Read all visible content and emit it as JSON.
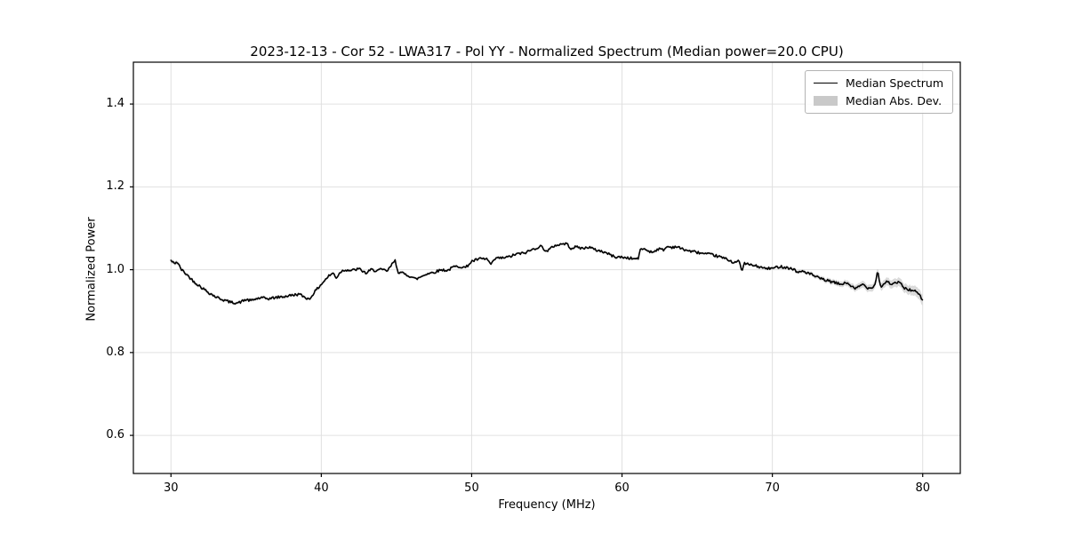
{
  "chart_data": {
    "type": "line",
    "title": "2023-12-13 - Cor 52 - LWA317 - Pol YY - Normalized Spectrum (Median power=20.0 CPU)",
    "xlabel": "Frequency (MHz)",
    "ylabel": "Normalized Power",
    "xlim": [
      27.5,
      82.5
    ],
    "ylim": [
      0.508,
      1.501
    ],
    "xticks": [
      30,
      40,
      50,
      60,
      70,
      80
    ],
    "xtick_labels": [
      "30",
      "40",
      "50",
      "60",
      "70",
      "80"
    ],
    "yticks": [
      0.6,
      0.8,
      1.0,
      1.2,
      1.4
    ],
    "ytick_labels": [
      "0.6",
      "0.8",
      "1.0",
      "1.2",
      "1.4"
    ],
    "grid": true,
    "style": {
      "grid_color": "#e0e0e0",
      "spine_color": "#000000",
      "tick_color": "#000000",
      "text_color": "#000000",
      "legend_border_color": "#b3b3b3",
      "line_color": "#000000",
      "band_color": "#bbbbbb"
    },
    "legend": {
      "position": "upper right",
      "entries": [
        {
          "label": "Median Spectrum",
          "type": "line",
          "color": "#000000"
        },
        {
          "label": "Median Abs. Dev.",
          "type": "patch",
          "color": "#c9c9c9"
        }
      ]
    },
    "series": [
      {
        "name": "Median Spectrum",
        "color": "#000000",
        "line_width": 1.6,
        "x_start": 30.0,
        "x_end": 80.0,
        "sample_step": 0.07,
        "noise_amplitude": 0.0032,
        "noise_seed": 42,
        "control_points": [
          [
            30.0,
            1.022
          ],
          [
            30.2,
            1.015
          ],
          [
            30.4,
            1.019
          ],
          [
            30.7,
            1.0
          ],
          [
            31.0,
            0.99
          ],
          [
            31.5,
            0.972
          ],
          [
            32.0,
            0.958
          ],
          [
            32.5,
            0.945
          ],
          [
            33.0,
            0.934
          ],
          [
            33.5,
            0.927
          ],
          [
            34.0,
            0.921
          ],
          [
            34.5,
            0.92
          ],
          [
            35.0,
            0.928
          ],
          [
            35.3,
            0.925
          ],
          [
            35.7,
            0.93
          ],
          [
            36.0,
            0.932
          ],
          [
            36.5,
            0.93
          ],
          [
            37.0,
            0.933
          ],
          [
            37.5,
            0.935
          ],
          [
            38.0,
            0.938
          ],
          [
            38.5,
            0.941
          ],
          [
            39.0,
            0.932
          ],
          [
            39.2,
            0.928
          ],
          [
            39.5,
            0.944
          ],
          [
            40.0,
            0.965
          ],
          [
            40.5,
            0.985
          ],
          [
            40.8,
            0.992
          ],
          [
            41.0,
            0.98
          ],
          [
            41.3,
            0.996
          ],
          [
            41.6,
            1.0
          ],
          [
            42.0,
            0.998
          ],
          [
            42.5,
            1.002
          ],
          [
            43.0,
            0.991
          ],
          [
            43.3,
            1.0
          ],
          [
            43.6,
            0.998
          ],
          [
            44.0,
            1.0
          ],
          [
            44.4,
            0.997
          ],
          [
            44.9,
            1.023
          ],
          [
            45.1,
            0.995
          ],
          [
            45.5,
            0.99
          ],
          [
            46.0,
            0.983
          ],
          [
            46.3,
            0.977
          ],
          [
            47.0,
            0.99
          ],
          [
            47.5,
            0.994
          ],
          [
            48.0,
            1.0
          ],
          [
            48.4,
            0.998
          ],
          [
            48.8,
            1.007
          ],
          [
            49.2,
            1.008
          ],
          [
            49.6,
            1.005
          ],
          [
            50.0,
            1.02
          ],
          [
            50.5,
            1.026
          ],
          [
            51.0,
            1.026
          ],
          [
            51.3,
            1.012
          ],
          [
            51.6,
            1.028
          ],
          [
            52.0,
            1.028
          ],
          [
            52.5,
            1.031
          ],
          [
            53.0,
            1.038
          ],
          [
            53.5,
            1.04
          ],
          [
            54.0,
            1.048
          ],
          [
            54.6,
            1.057
          ],
          [
            55.0,
            1.044
          ],
          [
            55.5,
            1.058
          ],
          [
            56.0,
            1.062
          ],
          [
            56.3,
            1.063
          ],
          [
            56.6,
            1.052
          ],
          [
            57.0,
            1.055
          ],
          [
            57.4,
            1.051
          ],
          [
            57.8,
            1.055
          ],
          [
            58.2,
            1.048
          ],
          [
            58.6,
            1.045
          ],
          [
            59.0,
            1.04
          ],
          [
            59.5,
            1.031
          ],
          [
            60.0,
            1.03
          ],
          [
            60.5,
            1.028
          ],
          [
            60.9,
            1.026
          ],
          [
            61.1,
            1.028
          ],
          [
            61.25,
            1.052
          ],
          [
            61.6,
            1.048
          ],
          [
            62.0,
            1.042
          ],
          [
            62.4,
            1.05
          ],
          [
            62.8,
            1.048
          ],
          [
            63.0,
            1.056
          ],
          [
            63.3,
            1.054
          ],
          [
            63.6,
            1.056
          ],
          [
            64.0,
            1.05
          ],
          [
            64.5,
            1.045
          ],
          [
            65.0,
            1.042
          ],
          [
            65.5,
            1.038
          ],
          [
            66.0,
            1.036
          ],
          [
            66.5,
            1.031
          ],
          [
            67.0,
            1.025
          ],
          [
            67.4,
            1.018
          ],
          [
            67.8,
            1.02
          ],
          [
            67.95,
            0.997
          ],
          [
            68.15,
            1.015
          ],
          [
            68.5,
            1.012
          ],
          [
            69.0,
            1.008
          ],
          [
            69.5,
            1.003
          ],
          [
            70.0,
            1.003
          ],
          [
            70.5,
            1.008
          ],
          [
            71.0,
            1.005
          ],
          [
            71.5,
            1.0
          ],
          [
            71.7,
            0.992
          ],
          [
            72.0,
            0.997
          ],
          [
            72.5,
            0.99
          ],
          [
            73.0,
            0.981
          ],
          [
            73.5,
            0.975
          ],
          [
            74.0,
            0.97
          ],
          [
            74.5,
            0.965
          ],
          [
            75.0,
            0.968
          ],
          [
            75.5,
            0.953
          ],
          [
            76.0,
            0.965
          ],
          [
            76.4,
            0.955
          ],
          [
            76.8,
            0.961
          ],
          [
            77.0,
            0.998
          ],
          [
            77.2,
            0.958
          ],
          [
            77.6,
            0.972
          ],
          [
            78.0,
            0.964
          ],
          [
            78.4,
            0.971
          ],
          [
            78.8,
            0.955
          ],
          [
            79.2,
            0.951
          ],
          [
            79.6,
            0.946
          ],
          [
            80.0,
            0.928
          ]
        ]
      },
      {
        "name": "Median Abs. Dev.",
        "type": "band",
        "color": "#bbbbbb",
        "opacity": 0.55,
        "halfwidth_points": [
          [
            30,
            0.005
          ],
          [
            32,
            0.004
          ],
          [
            40,
            0.003
          ],
          [
            50,
            0.003
          ],
          [
            60,
            0.003
          ],
          [
            68,
            0.003
          ],
          [
            72,
            0.004
          ],
          [
            74,
            0.006
          ],
          [
            76,
            0.008
          ],
          [
            77,
            0.009
          ],
          [
            78,
            0.01
          ],
          [
            79,
            0.011
          ],
          [
            80,
            0.013
          ]
        ]
      }
    ]
  }
}
